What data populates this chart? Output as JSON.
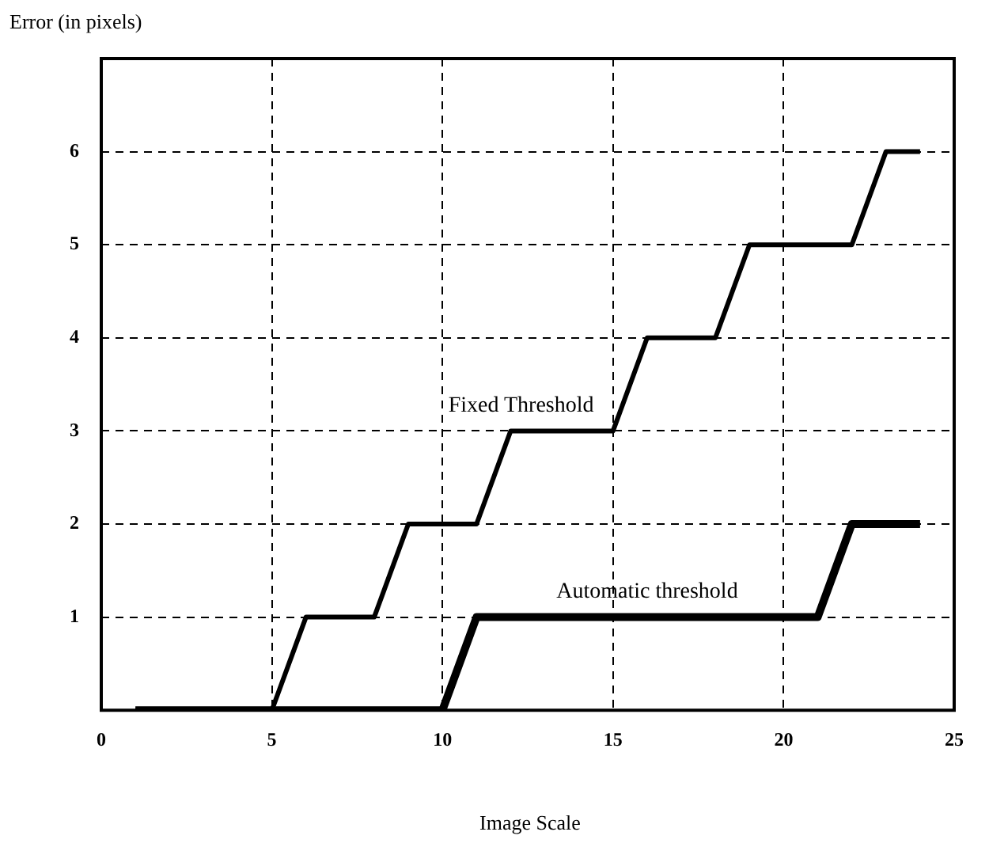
{
  "chart_data": {
    "type": "line",
    "xlabel": "Image Scale",
    "ylabel": "Error (in pixels)",
    "series": [
      {
        "name": "Fixed Threshold",
        "color": "#000000",
        "x": [
          1,
          5,
          6,
          8,
          9,
          11,
          12,
          15,
          16,
          18,
          19,
          22,
          23,
          24
        ],
        "values": [
          0,
          0,
          1,
          1,
          2,
          2,
          3,
          3,
          4,
          4,
          5,
          5,
          6,
          6
        ]
      },
      {
        "name": "Automatic threshold",
        "color": "#000000",
        "x": [
          1,
          10,
          11,
          21,
          22,
          24
        ],
        "values": [
          0,
          0,
          1,
          1,
          2,
          2
        ]
      }
    ],
    "xlim": [
      0,
      25
    ],
    "xticks": [
      0,
      5,
      10,
      15,
      20,
      25
    ],
    "ylim": [
      0,
      7
    ],
    "yticks": [
      1,
      2,
      3,
      4,
      5,
      6
    ],
    "grid": true,
    "legend": false,
    "marker": "none",
    "line_style": "solid"
  }
}
